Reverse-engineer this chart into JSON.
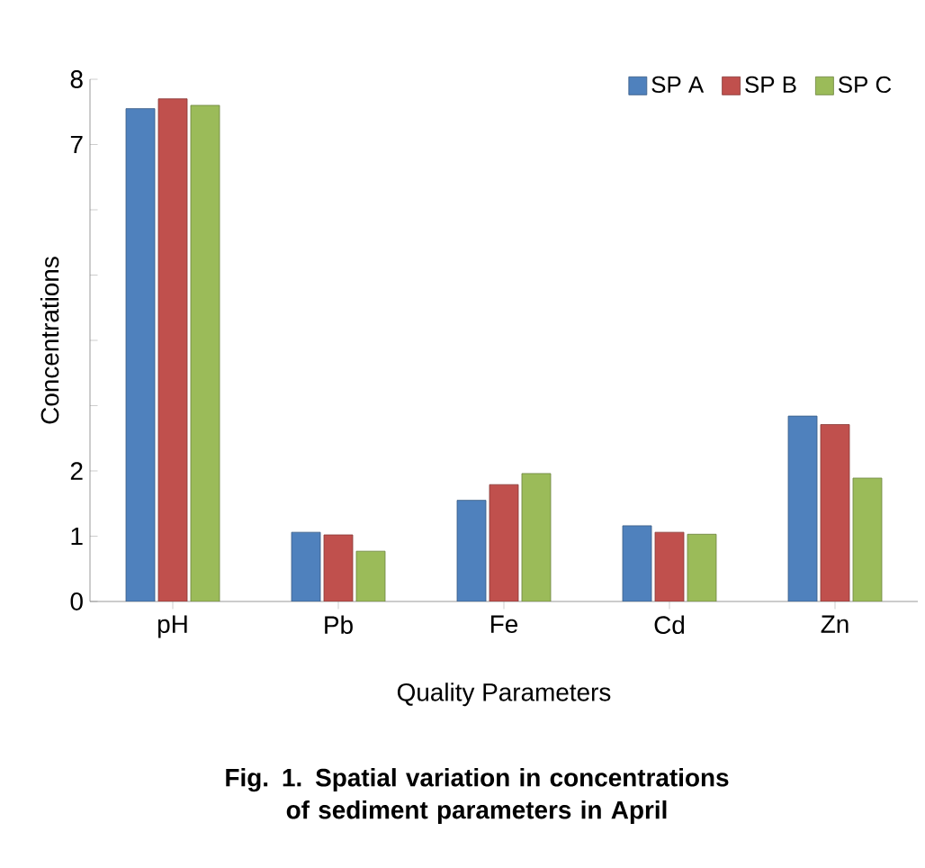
{
  "chart_data": {
    "type": "bar",
    "xlabel": "Quality Parameters",
    "ylabel": "Concentrations",
    "categories": [
      "pH",
      "Pb",
      "Fe",
      "Cd",
      "Zn"
    ],
    "series": [
      {
        "name": "SP A",
        "color": "#4f81bd",
        "values": [
          7.55,
          1.06,
          1.55,
          1.16,
          2.84
        ]
      },
      {
        "name": "SP B",
        "color": "#c0504d",
        "values": [
          7.7,
          1.02,
          1.79,
          1.06,
          2.71
        ]
      },
      {
        "name": "SP C",
        "color": "#9bbb59",
        "values": [
          7.6,
          0.77,
          1.96,
          1.03,
          1.89
        ]
      }
    ],
    "ylim": [
      0,
      8
    ],
    "yticks": [
      0,
      1,
      2,
      {
        "value": 3,
        "label": null
      },
      {
        "value": 4,
        "label": null
      },
      {
        "value": 5,
        "label": null
      },
      {
        "value": 6,
        "label": null
      },
      7,
      8
    ],
    "legend": "top right",
    "annotations": [
      "Fig. 1. Spatial variation in concentrations of sediment parameters in April"
    ]
  }
}
